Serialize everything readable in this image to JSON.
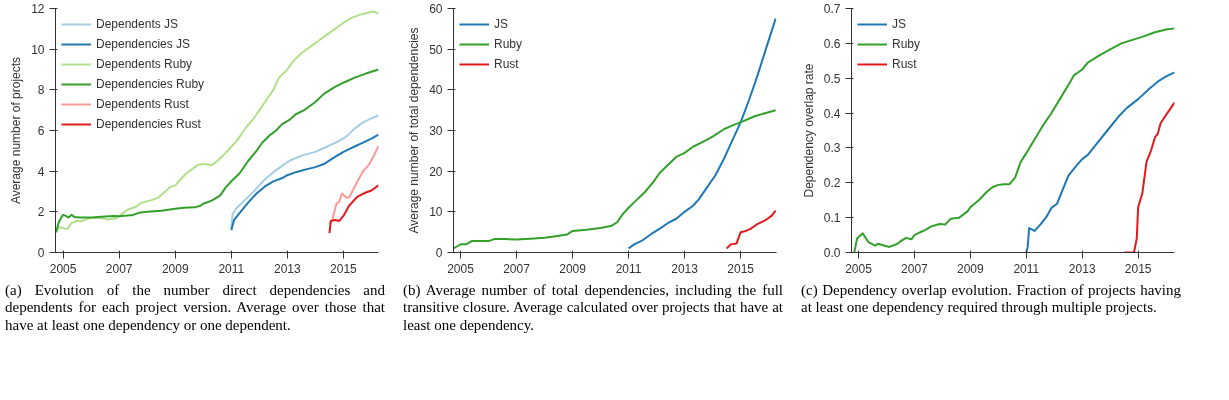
{
  "chart_data": [
    {
      "type": "line",
      "ylabel": "Average number of projects",
      "xlim": [
        2004.73,
        2016.25
      ],
      "ylim": [
        0,
        12
      ],
      "xticks": [
        2005,
        2007,
        2009,
        2011,
        2013,
        2015
      ],
      "yticks": [
        0,
        2,
        4,
        6,
        8,
        10,
        12
      ],
      "grid": false,
      "legend": "top left",
      "marker": "none",
      "line_style": "solid",
      "annotations": [
        "(a) Evolution of the number direct dependencies and dependents for each project version. Average over those that have at least one dependency or one dependent."
      ],
      "series": [
        {
          "name": "Dependents JS",
          "color": "#a6cee3",
          "x": [
            2011.0,
            2011.05,
            2011.2,
            2011.5,
            2011.8,
            2012.0,
            2012.2,
            2012.5,
            2012.8,
            2013.0,
            2013.3,
            2013.6,
            2014.0,
            2014.4,
            2014.8,
            2015.1,
            2015.4,
            2015.7,
            2016.0,
            2016.25
          ],
          "values": [
            1.2,
            1.9,
            2.2,
            2.6,
            3.0,
            3.3,
            3.6,
            3.95,
            4.25,
            4.45,
            4.65,
            4.8,
            4.95,
            5.2,
            5.45,
            5.7,
            6.1,
            6.4,
            6.6,
            6.75
          ]
        },
        {
          "name": "Dependencies JS",
          "color": "#1f78b4",
          "x": [
            2011.0,
            2011.1,
            2011.3,
            2011.6,
            2011.9,
            2012.2,
            2012.5,
            2012.8,
            2013.0,
            2013.3,
            2013.7,
            2014.0,
            2014.3,
            2014.7,
            2015.0,
            2015.3,
            2015.7,
            2016.0,
            2016.25
          ],
          "values": [
            1.1,
            1.6,
            1.95,
            2.45,
            2.9,
            3.25,
            3.5,
            3.65,
            3.8,
            3.95,
            4.1,
            4.2,
            4.35,
            4.7,
            4.95,
            5.15,
            5.4,
            5.6,
            5.8
          ]
        },
        {
          "name": "Dependents Ruby",
          "color": "#b2df8a",
          "x": [
            2004.75,
            2004.85,
            2005.0,
            2005.15,
            2005.3,
            2005.5,
            2005.7,
            2005.85,
            2006.0,
            2006.3,
            2006.6,
            2006.9,
            2007.1,
            2007.3,
            2007.6,
            2007.8,
            2008.1,
            2008.4,
            2008.6,
            2008.8,
            2009.0,
            2009.2,
            2009.4,
            2009.6,
            2009.8,
            2010.0,
            2010.3,
            2010.5,
            2010.8,
            2011.0,
            2011.2,
            2011.5,
            2011.8,
            2012.0,
            2012.3,
            2012.5,
            2012.7,
            2013.0,
            2013.2,
            2013.5,
            2013.8,
            2014.1,
            2014.4,
            2014.7,
            2015.0,
            2015.3,
            2015.6,
            2015.9,
            2016.1,
            2016.25
          ],
          "values": [
            1.0,
            1.25,
            1.2,
            1.15,
            1.45,
            1.55,
            1.55,
            1.65,
            1.7,
            1.7,
            1.62,
            1.68,
            1.9,
            2.1,
            2.25,
            2.45,
            2.55,
            2.7,
            2.95,
            3.2,
            3.3,
            3.6,
            3.9,
            4.1,
            4.3,
            4.35,
            4.3,
            4.5,
            4.9,
            5.2,
            5.5,
            6.1,
            6.6,
            7.0,
            7.6,
            8.0,
            8.6,
            9.0,
            9.4,
            9.8,
            10.1,
            10.4,
            10.7,
            11.0,
            11.3,
            11.55,
            11.7,
            11.8,
            11.85,
            11.75
          ]
        },
        {
          "name": "Dependencies Ruby",
          "color": "#33a02c",
          "x": [
            2004.75,
            2004.85,
            2004.95,
            2005.0,
            2005.1,
            2005.2,
            2005.3,
            2005.4,
            2005.6,
            2006.0,
            2006.5,
            2006.8,
            2007.0,
            2007.5,
            2007.7,
            2008.0,
            2008.5,
            2009.0,
            2009.3,
            2009.7,
            2009.9,
            2010.0,
            2010.3,
            2010.6,
            2010.8,
            2011.0,
            2011.3,
            2011.6,
            2011.9,
            2012.1,
            2012.4,
            2012.6,
            2012.8,
            2013.1,
            2013.3,
            2013.6,
            2014.0,
            2014.3,
            2014.7,
            2015.0,
            2015.4,
            2015.8,
            2016.25
          ],
          "values": [
            1.0,
            1.5,
            1.75,
            1.85,
            1.8,
            1.72,
            1.85,
            1.75,
            1.72,
            1.72,
            1.77,
            1.8,
            1.78,
            1.85,
            1.95,
            2.0,
            2.05,
            2.15,
            2.2,
            2.22,
            2.3,
            2.4,
            2.55,
            2.8,
            3.2,
            3.5,
            3.9,
            4.5,
            5.0,
            5.4,
            5.8,
            6.0,
            6.3,
            6.55,
            6.8,
            7.0,
            7.4,
            7.8,
            8.15,
            8.35,
            8.6,
            8.8,
            9.0
          ]
        },
        {
          "name": "Dependents Rust",
          "color": "#fb9a99",
          "x": [
            2014.5,
            2014.6,
            2014.75,
            2014.85,
            2014.95,
            2015.1,
            2015.2,
            2015.35,
            2015.5,
            2015.7,
            2015.9,
            2016.1,
            2016.25
          ],
          "values": [
            1.4,
            1.6,
            2.4,
            2.5,
            2.9,
            2.7,
            2.7,
            3.1,
            3.5,
            4.0,
            4.3,
            4.8,
            5.25
          ]
        },
        {
          "name": "Dependencies Rust",
          "color": "#e31a1c",
          "x": [
            2014.5,
            2014.55,
            2014.7,
            2014.85,
            2015.0,
            2015.2,
            2015.5,
            2015.8,
            2016.0,
            2016.25
          ],
          "values": [
            0.95,
            1.55,
            1.6,
            1.55,
            1.8,
            2.3,
            2.75,
            2.95,
            3.05,
            3.3
          ]
        }
      ]
    },
    {
      "type": "line",
      "ylabel": "Average number of total dependencies",
      "xlim": [
        2004.75,
        2016.28
      ],
      "ylim": [
        0,
        60
      ],
      "xticks": [
        2005,
        2007,
        2009,
        2011,
        2013,
        2015
      ],
      "yticks": [
        0,
        10,
        20,
        30,
        40,
        50,
        60
      ],
      "grid": false,
      "legend": "top left",
      "marker": "none",
      "line_style": "solid",
      "annotations": [
        "(b) Average number of total dependencies, including the full transitive closure. Average calculated over projects that have at least one dependency."
      ],
      "series": [
        {
          "name": "JS",
          "color": "#1f78b4",
          "x": [
            2011.0,
            2011.2,
            2011.5,
            2011.8,
            2012.1,
            2012.4,
            2012.7,
            2013.0,
            2013.3,
            2013.5,
            2013.8,
            2014.1,
            2014.4,
            2014.7,
            2015.0,
            2015.3,
            2015.6,
            2015.9,
            2016.25
          ],
          "values": [
            1.0,
            2.0,
            3.0,
            4.5,
            5.8,
            7.2,
            8.3,
            10.0,
            11.5,
            13,
            16,
            19,
            23,
            27.5,
            32,
            37.5,
            43.5,
            50,
            57.5
          ]
        },
        {
          "name": "Ruby",
          "color": "#33a02c",
          "x": [
            2004.75,
            2004.9,
            2005.0,
            2005.2,
            2005.4,
            2005.6,
            2006.0,
            2006.2,
            2006.6,
            2007.0,
            2007.5,
            2008.0,
            2008.4,
            2008.8,
            2009.0,
            2009.5,
            2010.0,
            2010.4,
            2010.6,
            2010.8,
            2011.0,
            2011.3,
            2011.6,
            2011.9,
            2012.1,
            2012.4,
            2012.7,
            2013.0,
            2013.3,
            2013.6,
            2014.0,
            2014.4,
            2014.8,
            2015.1,
            2015.5,
            2015.9,
            2016.25
          ],
          "values": [
            1.0,
            1.6,
            2.0,
            2.0,
            2.8,
            2.8,
            2.8,
            3.3,
            3.3,
            3.2,
            3.4,
            3.6,
            4.0,
            4.4,
            5.3,
            5.6,
            6.0,
            6.6,
            7.5,
            9.5,
            11.0,
            13,
            15,
            17.5,
            19.5,
            21.5,
            23.5,
            24.5,
            26,
            27,
            28.5,
            30.3,
            31.5,
            32.3,
            33.5,
            34.3,
            35
          ]
        },
        {
          "name": "Rust",
          "color": "#e31a1c",
          "x": [
            2014.5,
            2014.65,
            2014.85,
            2015.0,
            2015.15,
            2015.35,
            2015.6,
            2015.9,
            2016.1,
            2016.25
          ],
          "values": [
            1.0,
            2.0,
            2.2,
            5.0,
            5.2,
            5.8,
            7.0,
            8.0,
            9.0,
            10.3
          ]
        }
      ]
    },
    {
      "type": "line",
      "ylabel": "Dependency overlap rate",
      "xlim": [
        2004.75,
        2016.3
      ],
      "ylim": [
        0,
        0.7
      ],
      "xticks": [
        2005,
        2007,
        2009,
        2011,
        2013,
        2015
      ],
      "yticks": [
        {
          "value": 0,
          "label": "0.0"
        },
        0.1,
        0.2,
        0.3,
        0.4,
        0.5,
        0.6,
        0.7
      ],
      "grid": false,
      "legend": "top left",
      "marker": "none",
      "line_style": "solid",
      "annotations": [
        "(c) Dependency overlap evolution. Fraction of projects having at least one dependency required through multiple projects."
      ],
      "series": [
        {
          "name": "JS",
          "color": "#1f78b4",
          "x": [
            2011.0,
            2011.05,
            2011.1,
            2011.3,
            2011.5,
            2011.7,
            2011.9,
            2012.1,
            2012.3,
            2012.5,
            2012.8,
            2013.0,
            2013.2,
            2013.5,
            2013.9,
            2014.3,
            2014.6,
            2015.0,
            2015.4,
            2015.7,
            2016.0,
            2016.3
          ],
          "values": [
            0.0,
            0.015,
            0.07,
            0.062,
            0.08,
            0.1,
            0.128,
            0.14,
            0.18,
            0.22,
            0.25,
            0.268,
            0.28,
            0.31,
            0.35,
            0.39,
            0.415,
            0.44,
            0.47,
            0.49,
            0.505,
            0.517
          ]
        },
        {
          "name": "Ruby",
          "color": "#33a02c",
          "x": [
            2004.85,
            2004.95,
            2005.15,
            2005.35,
            2005.6,
            2005.7,
            2006.1,
            2006.4,
            2006.5,
            2006.7,
            2006.9,
            2007.0,
            2007.2,
            2007.4,
            2007.6,
            2007.9,
            2008.1,
            2008.3,
            2008.6,
            2008.9,
            2009.0,
            2009.3,
            2009.6,
            2009.8,
            2010.0,
            2010.2,
            2010.4,
            2010.6,
            2010.8,
            2011.0,
            2011.3,
            2011.6,
            2011.9,
            2012.2,
            2012.5,
            2012.7,
            2013.0,
            2013.2,
            2013.6,
            2014.0,
            2014.4,
            2014.8,
            2015.2,
            2015.6,
            2016.0,
            2016.3
          ],
          "values": [
            0.0,
            0.04,
            0.055,
            0.03,
            0.02,
            0.025,
            0.016,
            0.025,
            0.032,
            0.042,
            0.038,
            0.05,
            0.058,
            0.065,
            0.075,
            0.082,
            0.08,
            0.097,
            0.1,
            0.118,
            0.13,
            0.15,
            0.175,
            0.188,
            0.194,
            0.196,
            0.196,
            0.215,
            0.26,
            0.285,
            0.325,
            0.365,
            0.4,
            0.44,
            0.48,
            0.508,
            0.525,
            0.545,
            0.565,
            0.583,
            0.6,
            0.61,
            0.62,
            0.632,
            0.64,
            0.643
          ]
        },
        {
          "name": "Rust",
          "color": "#e31a1c",
          "x": [
            2014.5,
            2014.85,
            2014.95,
            2015.0,
            2015.15,
            2015.3,
            2015.45,
            2015.6,
            2015.7,
            2015.8,
            2016.0,
            2016.3
          ],
          "values": [
            0.0,
            0.0,
            0.04,
            0.13,
            0.17,
            0.26,
            0.29,
            0.33,
            0.34,
            0.37,
            0.395,
            0.43
          ]
        }
      ]
    }
  ]
}
